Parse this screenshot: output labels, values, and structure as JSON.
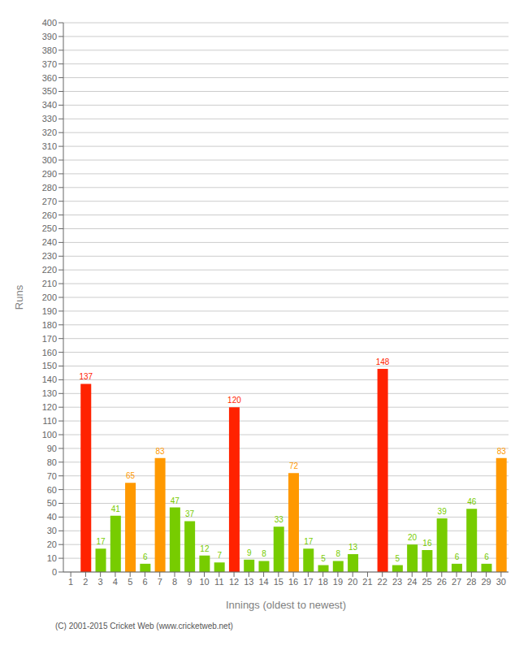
{
  "chart_data": {
    "type": "bar",
    "xlabel": "Innings (oldest to newest)",
    "ylabel": "Runs",
    "annotations": [
      "(C) 2001-2015 Cricket Web (www.cricketweb.net)"
    ],
    "categories": [
      "1",
      "2",
      "3",
      "4",
      "5",
      "6",
      "7",
      "8",
      "9",
      "10",
      "11",
      "12",
      "13",
      "14",
      "15",
      "16",
      "17",
      "18",
      "19",
      "20",
      "21",
      "22",
      "23",
      "24",
      "25",
      "26",
      "27",
      "28",
      "29",
      "30"
    ],
    "values": [
      0,
      137,
      17,
      41,
      65,
      6,
      83,
      47,
      37,
      12,
      7,
      120,
      9,
      8,
      33,
      72,
      17,
      5,
      8,
      13,
      0,
      148,
      5,
      20,
      16,
      39,
      6,
      46,
      6,
      83
    ],
    "colors": [
      "#77cc00",
      "#ff2200",
      "#77cc00",
      "#77cc00",
      "#ff9900",
      "#77cc00",
      "#ff9900",
      "#77cc00",
      "#77cc00",
      "#77cc00",
      "#77cc00",
      "#ff2200",
      "#77cc00",
      "#77cc00",
      "#77cc00",
      "#ff9900",
      "#77cc00",
      "#77cc00",
      "#77cc00",
      "#77cc00",
      "#77cc00",
      "#ff2200",
      "#77cc00",
      "#77cc00",
      "#77cc00",
      "#77cc00",
      "#77cc00",
      "#77cc00",
      "#77cc00",
      "#ff9900"
    ],
    "ylim": [
      0,
      400
    ],
    "yticks": [
      0,
      10,
      20,
      30,
      40,
      50,
      60,
      70,
      80,
      90,
      100,
      110,
      120,
      130,
      140,
      150,
      160,
      170,
      180,
      190,
      200,
      210,
      220,
      230,
      240,
      250,
      260,
      270,
      280,
      290,
      300,
      310,
      320,
      330,
      340,
      350,
      360,
      370,
      380,
      390,
      400
    ],
    "grid": true,
    "data_labels": true
  }
}
